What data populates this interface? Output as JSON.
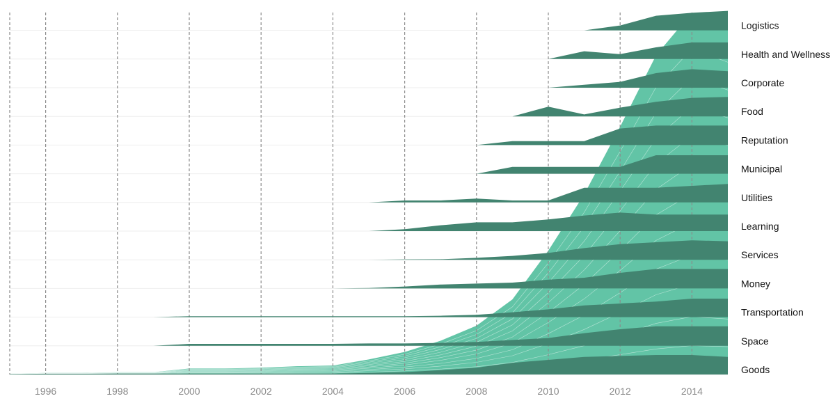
{
  "chart_data": {
    "type": "area",
    "title": "",
    "xlabel": "",
    "ylabel": "",
    "xlim": [
      1995,
      2015
    ],
    "x_ticks": [
      1996,
      1998,
      2000,
      2002,
      2004,
      2006,
      2008,
      2010,
      2012,
      2014
    ],
    "grid": "vertical dashed at ticks",
    "colors": {
      "ridge": "#428470",
      "total_area": "#62c4a6",
      "area_lines": "#ffffff",
      "tick_label": "#8a8a8a",
      "grid": "#8a8a8a"
    },
    "total": {
      "name": "",
      "x": [
        1995,
        1996,
        1997,
        1998,
        1999,
        2000,
        2001,
        2002,
        2003,
        2004,
        2005,
        2006,
        2007,
        2008,
        2009,
        2010,
        2011,
        2012,
        2013,
        2014,
        2015
      ],
      "values": [
        1,
        2,
        2,
        3,
        3,
        8,
        8,
        9,
        11,
        12,
        20,
        30,
        45,
        65,
        100,
        165,
        240,
        330,
        425,
        482,
        462
      ]
    },
    "series": [
      {
        "name": "Logistics",
        "x": [
          2011,
          2012,
          2013,
          2014,
          2015
        ],
        "values": [
          0,
          0.25,
          0.75,
          0.9,
          1.0
        ]
      },
      {
        "name": "Health and Wellness",
        "x": [
          2010,
          2011,
          2012,
          2013,
          2014,
          2015
        ],
        "values": [
          0,
          0.4,
          0.25,
          0.6,
          0.85,
          0.85
        ]
      },
      {
        "name": "Corporate",
        "x": [
          2010,
          2011,
          2012,
          2013,
          2014,
          2015
        ],
        "values": [
          0,
          0.15,
          0.3,
          0.75,
          0.95,
          0.85
        ]
      },
      {
        "name": "Food",
        "x": [
          2009,
          2010,
          2011,
          2012,
          2013,
          2014,
          2015
        ],
        "values": [
          0,
          0.5,
          0.1,
          0.45,
          0.75,
          0.95,
          1.0
        ]
      },
      {
        "name": "Reputation",
        "x": [
          2008,
          2009,
          2010,
          2011,
          2012,
          2013,
          2014,
          2015
        ],
        "values": [
          0,
          0.2,
          0.2,
          0.2,
          0.85,
          1.0,
          1.0,
          1.0
        ]
      },
      {
        "name": "Municipal",
        "x": [
          2008,
          2009,
          2010,
          2011,
          2012,
          2013,
          2014,
          2015
        ],
        "values": [
          0,
          0.35,
          0.35,
          0.35,
          0.35,
          0.95,
          0.95,
          0.95
        ]
      },
      {
        "name": "Utilities",
        "x": [
          2005,
          2006,
          2007,
          2008,
          2009,
          2010,
          2011,
          2012,
          2013,
          2014,
          2015
        ],
        "values": [
          0,
          0.1,
          0.1,
          0.2,
          0.1,
          0.1,
          0.75,
          0.75,
          0.75,
          0.85,
          0.95
        ]
      },
      {
        "name": "Learning",
        "x": [
          2005,
          2006,
          2007,
          2008,
          2009,
          2010,
          2011,
          2012,
          2013,
          2014,
          2015
        ],
        "values": [
          0,
          0.1,
          0.3,
          0.45,
          0.45,
          0.6,
          0.8,
          0.95,
          0.85,
          0.85,
          0.85
        ]
      },
      {
        "name": "Services",
        "x": [
          2004,
          2005,
          2006,
          2007,
          2008,
          2009,
          2010,
          2011,
          2012,
          2013,
          2014,
          2015
        ],
        "values": [
          0,
          0,
          0.02,
          0.03,
          0.1,
          0.2,
          0.35,
          0.6,
          0.8,
          0.9,
          1.0,
          0.95
        ]
      },
      {
        "name": "Money",
        "x": [
          2004,
          2005,
          2006,
          2007,
          2008,
          2009,
          2010,
          2011,
          2012,
          2013,
          2014,
          2015
        ],
        "values": [
          0,
          0.02,
          0.1,
          0.2,
          0.25,
          0.3,
          0.45,
          0.55,
          0.8,
          1.0,
          1.0,
          1.0
        ]
      },
      {
        "name": "Transportation",
        "x": [
          1999,
          2000,
          2001,
          2002,
          2003,
          2004,
          2005,
          2006,
          2007,
          2008,
          2009,
          2010,
          2011,
          2012,
          2013,
          2014,
          2015
        ],
        "values": [
          0,
          0.05,
          0.05,
          0.05,
          0.05,
          0.05,
          0.05,
          0.05,
          0.07,
          0.12,
          0.25,
          0.4,
          0.6,
          0.7,
          0.8,
          0.95,
          0.95
        ]
      },
      {
        "name": "Space",
        "x": [
          1999,
          2000,
          2001,
          2002,
          2003,
          2004,
          2005,
          2006,
          2007,
          2008,
          2009,
          2010,
          2011,
          2012,
          2013,
          2014,
          2015
        ],
        "values": [
          0,
          0.1,
          0.1,
          0.1,
          0.1,
          0.1,
          0.12,
          0.12,
          0.15,
          0.2,
          0.3,
          0.4,
          0.65,
          0.85,
          1.0,
          1.0,
          1.0
        ]
      },
      {
        "name": "Goods",
        "x": [
          1995,
          1996,
          1997,
          1998,
          1999,
          2000,
          2001,
          2002,
          2003,
          2004,
          2005,
          2006,
          2007,
          2008,
          2009,
          2010,
          2011,
          2012,
          2013,
          2014,
          2015
        ],
        "values": [
          0.02,
          0.04,
          0.04,
          0.05,
          0.05,
          0.05,
          0.05,
          0.05,
          0.05,
          0.05,
          0.08,
          0.12,
          0.22,
          0.35,
          0.6,
          0.75,
          0.9,
          0.95,
          1.0,
          1.0,
          0.9
        ]
      }
    ]
  }
}
